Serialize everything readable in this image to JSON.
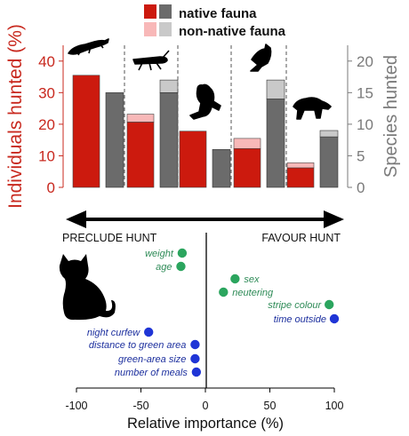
{
  "colors": {
    "native_red": "#cc1a0e",
    "nonnative_red": "#f8b8b8",
    "native_grey": "#6b6b6b",
    "nonnative_grey": "#c9c9c9",
    "axis_red": "#c8281e",
    "axis_grey": "#7a7a7a",
    "green_point": "#2ba55e",
    "blue_point": "#1f35d6",
    "green_text": "#2e8b57",
    "blue_text": "#1c2f9e"
  },
  "chart_data": [
    {
      "type": "bar",
      "legend": [
        {
          "label": "native fauna",
          "colors": [
            "#cc1a0e",
            "#6b6b6b"
          ]
        },
        {
          "label": "non-native fauna",
          "colors": [
            "#f8b8b8",
            "#c9c9c9"
          ]
        }
      ],
      "left_axis": {
        "label": "Individuals hunted (%)",
        "ticks": [
          "0",
          "10",
          "20",
          "30",
          "40"
        ],
        "range": [
          0,
          45
        ]
      },
      "right_axis": {
        "label": "Species hunted",
        "ticks": [
          "0",
          "5",
          "10",
          "15",
          "20"
        ],
        "range": [
          0,
          22.5
        ]
      },
      "groups": [
        {
          "icon": "lizard-icon",
          "individuals": {
            "native": 35.5,
            "non_native": 0
          },
          "species": {
            "native": 15,
            "non_native": 0
          }
        },
        {
          "icon": "insect-icon",
          "individuals": {
            "native": 20.7,
            "non_native": 2.5
          },
          "species": {
            "native": 15,
            "non_native": 2
          }
        },
        {
          "icon": "frog-icon",
          "individuals": {
            "native": 17.8,
            "non_native": 0
          },
          "species": {
            "native": 6,
            "non_native": 0
          }
        },
        {
          "icon": "bird-icon",
          "individuals": {
            "native": 12.3,
            "non_native": 3.2
          },
          "species": {
            "native": 14,
            "non_native": 3
          }
        },
        {
          "icon": "mammal-icon",
          "individuals": {
            "native": 6.2,
            "non_native": 1.6
          },
          "species": {
            "native": 8,
            "non_native": 1
          }
        }
      ]
    },
    {
      "type": "scatter",
      "xlabel": "Relative importance (%)",
      "xlim": [
        -100,
        100
      ],
      "xticks": [
        "-100",
        "-50",
        "0",
        "50",
        "100"
      ],
      "arrows": {
        "left_label": "PRECLUDE HUNT",
        "right_label": "FAVOUR HUNT"
      },
      "series": [
        {
          "color": "#2ba55e",
          "points": [
            {
              "label": "weight",
              "x": -18
            },
            {
              "label": "age",
              "x": -19
            },
            {
              "label": "sex",
              "x": 23
            },
            {
              "label": "neutering",
              "x": 14
            },
            {
              "label": "stripe colour",
              "x": 96
            }
          ]
        },
        {
          "color": "#1f35d6",
          "points": [
            {
              "label": "time outside",
              "x": 100
            },
            {
              "label": "night curfew",
              "x": -44
            },
            {
              "label": "distance to green area",
              "x": -8
            },
            {
              "label": "green-area size",
              "x": -8
            },
            {
              "label": "number of meals",
              "x": -7
            }
          ]
        }
      ]
    }
  ]
}
